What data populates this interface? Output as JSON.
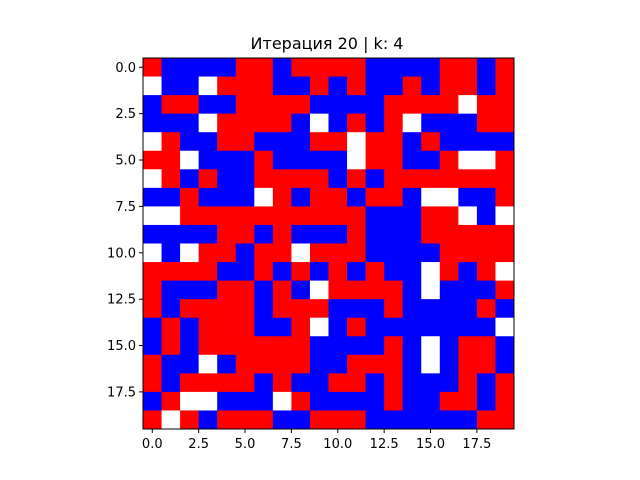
{
  "chart_data": {
    "type": "heatmap",
    "title": "Итерация 20 | k: 4",
    "xlabel": "",
    "ylabel": "",
    "rows": 20,
    "cols": 20,
    "xlim": [
      -0.5,
      19.5
    ],
    "ylim": [
      19.5,
      -0.5
    ],
    "y_inverted": true,
    "grid": false,
    "x_ticks": [
      0.0,
      2.5,
      5.0,
      7.5,
      10.0,
      12.5,
      15.0,
      17.5
    ],
    "x_tick_labels": [
      "0.0",
      "2.5",
      "5.0",
      "7.5",
      "10.0",
      "12.5",
      "15.0",
      "17.5"
    ],
    "y_ticks": [
      0.0,
      2.5,
      5.0,
      7.5,
      10.0,
      12.5,
      15.0,
      17.5
    ],
    "y_tick_labels": [
      "0.0",
      "2.5",
      "5.0",
      "7.5",
      "10.0",
      "12.5",
      "15.0",
      "17.5"
    ],
    "legend": "none",
    "state_colors": {
      "R": "#ff0000",
      "B": "#0000ff",
      "W": "#ffffff"
    },
    "state_grid": [
      "RBBBBRRBRRRRBBBBRRBR",
      "WBBWRRRBBRBRBBRBRRBR",
      "BRRBBRRRRBBBBRRRRWRR",
      "BBBWRRRRBWBRBRWBBBRR",
      "WRBBRRBBBRRWRRBRBBBB",
      "RRWBBBRBBBBWRRBBRWWR",
      "WRBRBBRRRRBRBRRRRRRR",
      "BBRBBBWRBRRBRRBWWBBR",
      "WWRRRRRRRRRRBBBRRWBW",
      "BBBBRRBRBBBRBBBRRRRR",
      "WBWRRBRRWRRRBBBBRRRR",
      "RRRRBBRBRBRBRBBWRBRW",
      "RBBBRRBRBWRRRRBWBBBR",
      "RBRRRRBRRRBBBRBBBBRB",
      "BRBRRRBBRWBRBBBBBBBW",
      "BRBRRRRRRBBBBRBWBRRB",
      "RBBWBRRRRBBRRRBWBRRB",
      "RBRRRRBRBBRRBRBBBRBR",
      "BRWWBBBWRBBBBRBBRRBR",
      "RWRBRRRBBRRRBBBBBBRR"
    ]
  }
}
